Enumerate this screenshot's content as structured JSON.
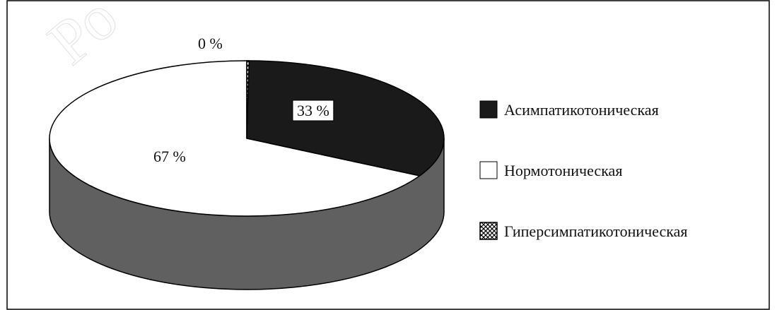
{
  "chart_data": {
    "type": "pie",
    "title": "",
    "categories": [
      "Асимпатикотоническая",
      "Нормотоническая",
      "Гиперсимпатикотоническая"
    ],
    "values": [
      33,
      67,
      0
    ],
    "labels": [
      "33 %",
      "67 %",
      "0 %"
    ],
    "colors": [
      "#1a1a1a",
      "#ffffff",
      "hatch"
    ],
    "side_color": "#606060",
    "legend_position": "right",
    "three_d": true
  },
  "watermark_text": "Ро"
}
